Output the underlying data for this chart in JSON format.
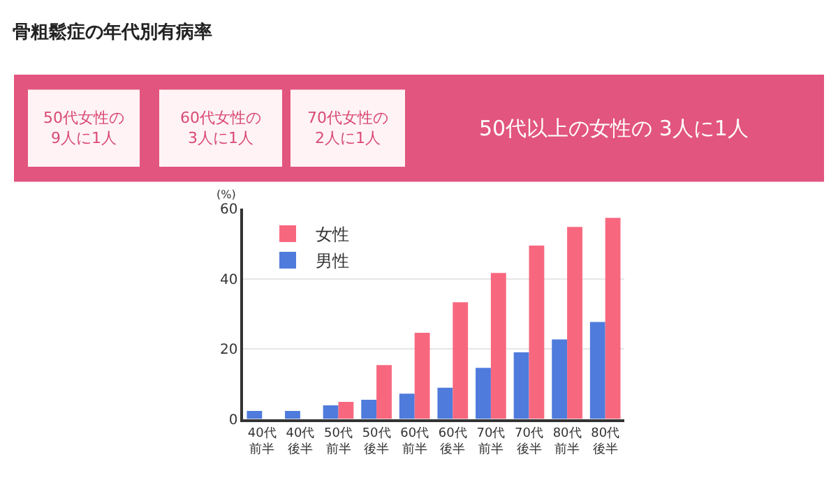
{
  "chart_data": {
    "type": "bar",
    "title": "骨粗鬆症の年代別有病率",
    "ylabel": "(%)",
    "annotations": [
      "50代女性の\n9人に1人",
      "60代女性の\n3人に1人",
      "70代女性の\n2人に1人",
      "50代以上の女性の 3人に1人"
    ],
    "categories": [
      "40代前半",
      "40代後半",
      "50代前半",
      "50代後半",
      "60代前半",
      "60代後半",
      "70代前半",
      "70代後半",
      "80代前半",
      "80代後半"
    ],
    "series": [
      {
        "name": "女性",
        "color": "#f7687f",
        "values": [
          null,
          null,
          4.9,
          15.4,
          24.6,
          33.3,
          41.7,
          49.5,
          54.8,
          57.4
        ]
      },
      {
        "name": "男性",
        "color": "#4f7bdc",
        "values": [
          2.3,
          2.3,
          3.9,
          5.5,
          7.2,
          8.9,
          14.6,
          19.0,
          22.7,
          27.7
        ]
      }
    ],
    "ylim": [
      0,
      60
    ],
    "yticks": [
      0,
      20,
      40,
      60
    ],
    "grid": "y",
    "legend": "top left"
  }
}
